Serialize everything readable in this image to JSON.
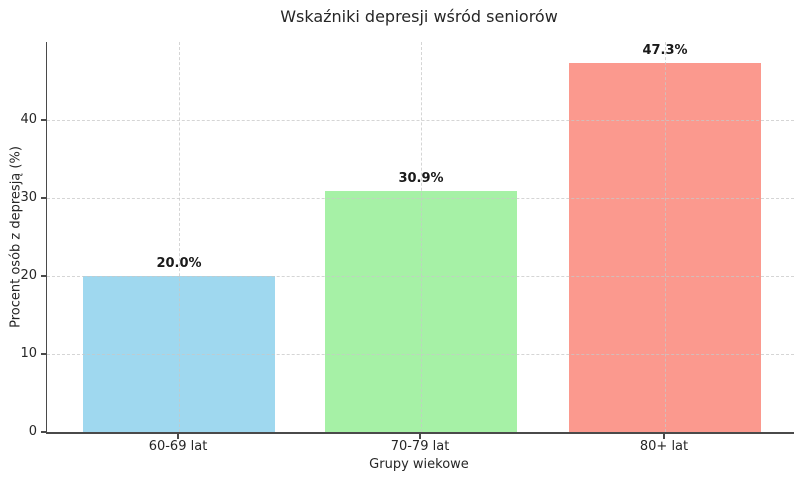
{
  "chart_data": {
    "type": "bar",
    "title": "Wskaźniki depresji wśród seniorów",
    "xlabel": "Grupy wiekowe",
    "ylabel": "Procent osób z depresją (%)",
    "categories": [
      "60-69 lat",
      "70-79 lat",
      "80+ lat"
    ],
    "values": [
      20.0,
      30.9,
      47.3
    ],
    "value_labels": [
      "20.0%",
      "30.9%",
      "47.3%"
    ],
    "bar_colors": [
      "#9FD8EF",
      "#A6F1A6",
      "#FB998E"
    ],
    "ylim": [
      0,
      50
    ],
    "yticks": [
      0,
      10,
      20,
      30,
      40
    ],
    "grid": true,
    "grid_style": "dashed",
    "legend": "none",
    "spines_visible": [
      "left",
      "bottom"
    ]
  },
  "colors": {
    "spine": "#4a4a4a",
    "grid": "#c8c8c8",
    "text": "#262626",
    "value_label_text": "#1a1a1a",
    "background": "#ffffff"
  }
}
